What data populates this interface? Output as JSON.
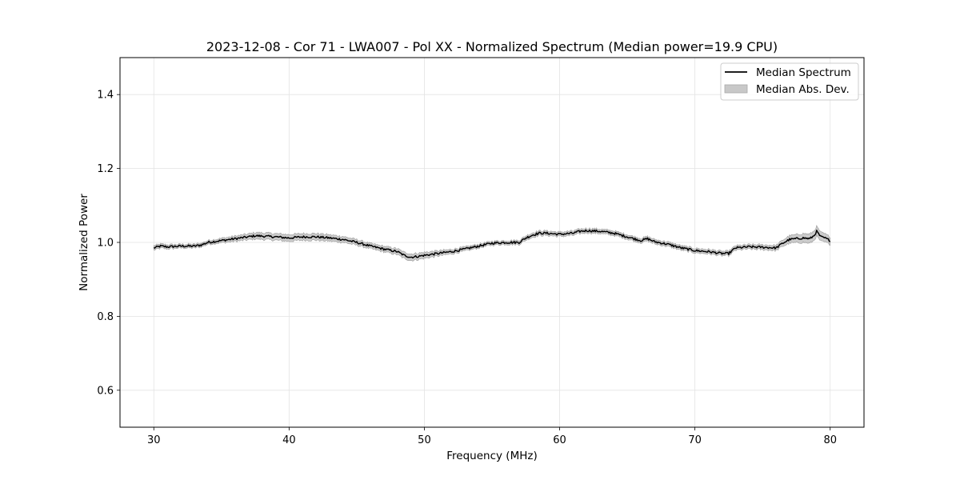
{
  "chart_data": {
    "type": "line",
    "title": "2023-12-08 - Cor 71 - LWA007 - Pol XX - Normalized Spectrum (Median power=19.9 CPU)",
    "xlabel": "Frequency (MHz)",
    "ylabel": "Normalized Power",
    "xlim": [
      27.5,
      82.5
    ],
    "ylim": [
      0.5,
      1.5
    ],
    "xticks": [
      30,
      40,
      50,
      60,
      70,
      80
    ],
    "yticks": [
      0.6,
      0.8,
      1.0,
      1.2,
      1.4
    ],
    "xtick_labels": [
      "30",
      "40",
      "50",
      "60",
      "70",
      "80"
    ],
    "ytick_labels": [
      "0.6",
      "0.8",
      "1.0",
      "1.2",
      "1.4"
    ],
    "grid": true,
    "legend_position": "top-right",
    "legend": [
      {
        "label": "Median Spectrum",
        "kind": "line",
        "color": "#000000"
      },
      {
        "label": "Median Abs. Dev.",
        "kind": "band",
        "color": "#c8c8c8"
      }
    ],
    "series": [
      {
        "name": "Median Spectrum",
        "color": "#000000",
        "x": [
          30,
          30.5,
          31,
          32,
          33,
          33.5,
          34,
          35,
          36,
          37,
          37.5,
          38,
          39,
          40,
          41,
          42,
          43,
          44,
          45,
          46,
          47,
          48,
          48.5,
          49,
          49.5,
          50,
          51,
          52,
          53,
          54,
          55,
          56,
          57,
          57.5,
          58,
          58.5,
          59,
          60,
          61,
          61.5,
          62,
          63,
          64,
          65,
          66,
          66.5,
          67,
          68,
          69,
          70,
          71,
          72,
          72.5,
          73,
          74,
          75,
          76,
          76.5,
          77,
          78,
          78.5,
          78.8,
          79,
          79.3,
          79.6,
          80
        ],
        "y": [
          0.985,
          0.99,
          0.988,
          0.99,
          0.99,
          0.993,
          1.0,
          1.005,
          1.01,
          1.015,
          1.018,
          1.017,
          1.015,
          1.012,
          1.015,
          1.015,
          1.012,
          1.008,
          1.0,
          0.99,
          0.982,
          0.975,
          0.965,
          0.96,
          0.962,
          0.965,
          0.97,
          0.975,
          0.982,
          0.99,
          0.998,
          1.0,
          1.0,
          1.012,
          1.02,
          1.025,
          1.025,
          1.022,
          1.025,
          1.03,
          1.032,
          1.03,
          1.025,
          1.015,
          1.005,
          1.01,
          1.002,
          0.995,
          0.985,
          0.978,
          0.975,
          0.97,
          0.97,
          0.985,
          0.988,
          0.987,
          0.985,
          0.998,
          1.008,
          1.012,
          1.01,
          1.018,
          1.03,
          1.015,
          1.012,
          1.005
        ]
      },
      {
        "name": "Median Abs. Dev.",
        "color": "#c8c8c8",
        "x": [
          30,
          32,
          34,
          36,
          38,
          40,
          42,
          44,
          46,
          48,
          49,
          50,
          52,
          54,
          56,
          58,
          60,
          62,
          64,
          66,
          68,
          70,
          72,
          74,
          76,
          77,
          78,
          79,
          80
        ],
        "mad": [
          0.006,
          0.005,
          0.005,
          0.007,
          0.009,
          0.009,
          0.009,
          0.008,
          0.007,
          0.008,
          0.009,
          0.008,
          0.006,
          0.005,
          0.005,
          0.006,
          0.006,
          0.006,
          0.006,
          0.006,
          0.006,
          0.006,
          0.006,
          0.006,
          0.007,
          0.01,
          0.012,
          0.013,
          0.01
        ]
      }
    ]
  }
}
